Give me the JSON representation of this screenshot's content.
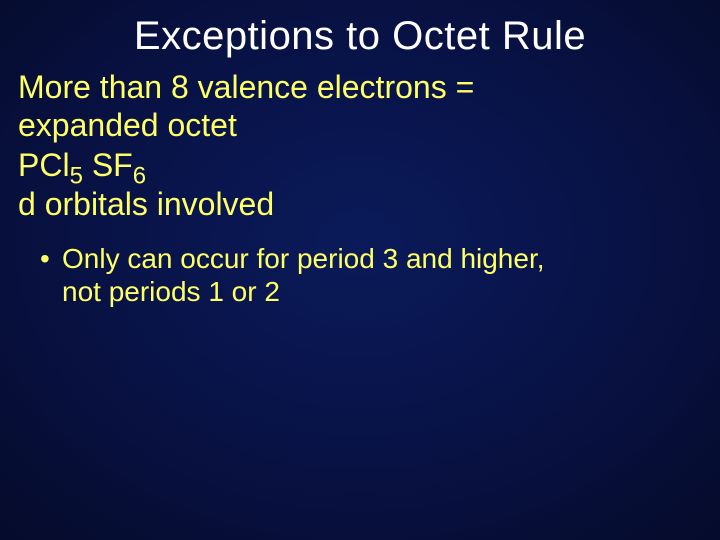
{
  "colors": {
    "title_color": "#ffffff",
    "body_color": "#ffff66"
  },
  "title": "Exceptions to Octet Rule",
  "line1a": "More than 8 valence electrons =",
  "line1b": "expanded octet",
  "formulas": {
    "p_prefix": "PCl",
    "p_sub": "5",
    "sep": " ",
    "s_prefix": "SF",
    "s_sub": "6"
  },
  "line3": "d orbitals involved",
  "bullet": {
    "dot": "•",
    "text_line1": "Only can occur for period 3 and higher,",
    "text_line2": "not periods 1 or 2"
  }
}
